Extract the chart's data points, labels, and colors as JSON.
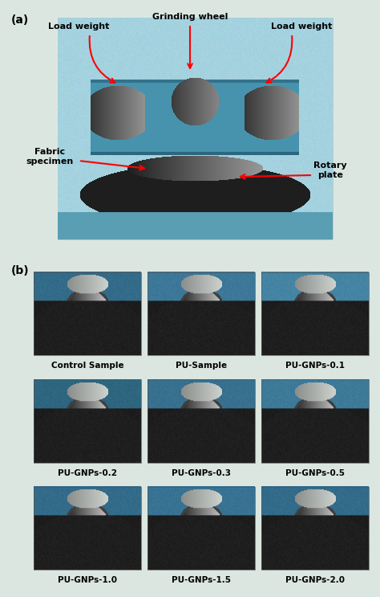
{
  "background_color": "#dce6e0",
  "fig_width": 4.74,
  "fig_height": 7.43,
  "dpi": 100,
  "panel_a_label": "(a)",
  "panel_b_label": "(b)",
  "panel_b_labels": [
    "Control Sample",
    "PU-Sample",
    "PU-GNPs-0.1",
    "PU-GNPs-0.2",
    "PU-GNPs-0.3",
    "PU-GNPs-0.5",
    "PU-GNPs-1.0",
    "PU-GNPs-1.5",
    "PU-GNPs-2.0"
  ],
  "label_fontsize": 7.5,
  "label_fontweight": "bold",
  "annotation_fontsize": 8.0,
  "annotation_fontweight": "bold",
  "panel_label_fontsize": 10,
  "machine_bg": "#9ecfda",
  "machine_body": "#4a9ab0",
  "wheel_gray": "#909090",
  "wheel_dark": "#606060",
  "fabric_dark": "#1a1a1a",
  "photo_fabric_color": "#151515",
  "photo_blue_color": "#2a5f7f",
  "photo_lightblue_color": "#6aacbb",
  "photo_metal_light": "#c8c8c8",
  "photo_metal_dark": "#888888"
}
